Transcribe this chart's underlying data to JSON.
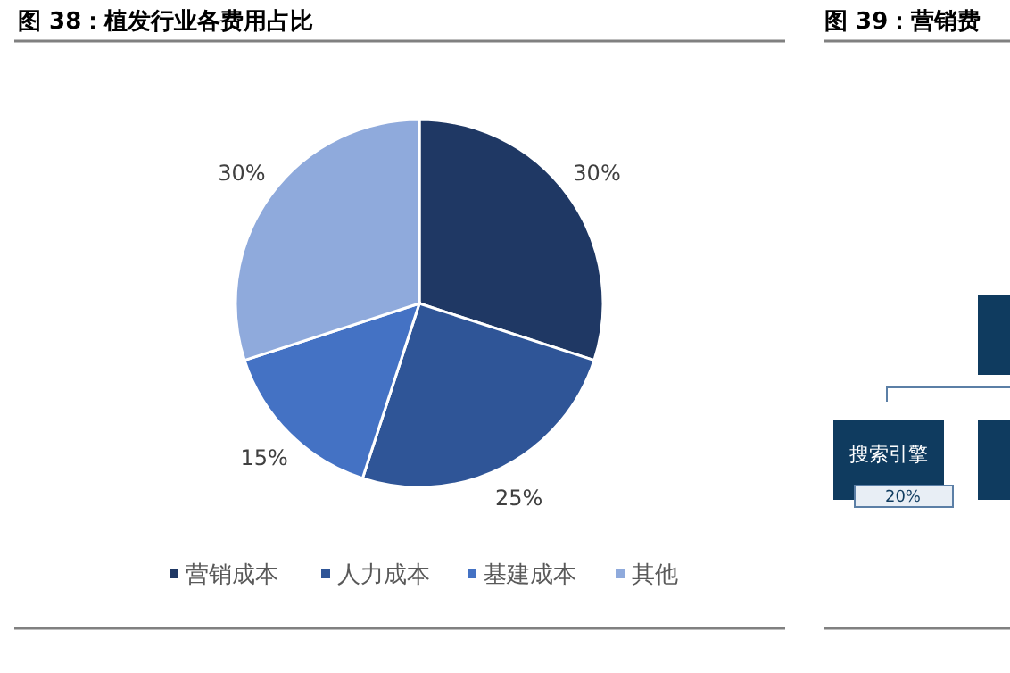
{
  "chart_data": {
    "type": "pie",
    "title": "图 38：植发行业各费用占比",
    "categories": [
      "营销成本",
      "人力成本",
      "基建成本",
      "其他"
    ],
    "values": [
      30,
      25,
      15,
      30
    ],
    "colors": [
      "#1f3864",
      "#2f5597",
      "#4472c4",
      "#8faadc"
    ],
    "value_labels": [
      "30%",
      "25%",
      "15%",
      "30%"
    ],
    "legend": "bottom",
    "annotations": [
      "图 39：营销费",
      "搜索引擎",
      "20%"
    ]
  }
}
